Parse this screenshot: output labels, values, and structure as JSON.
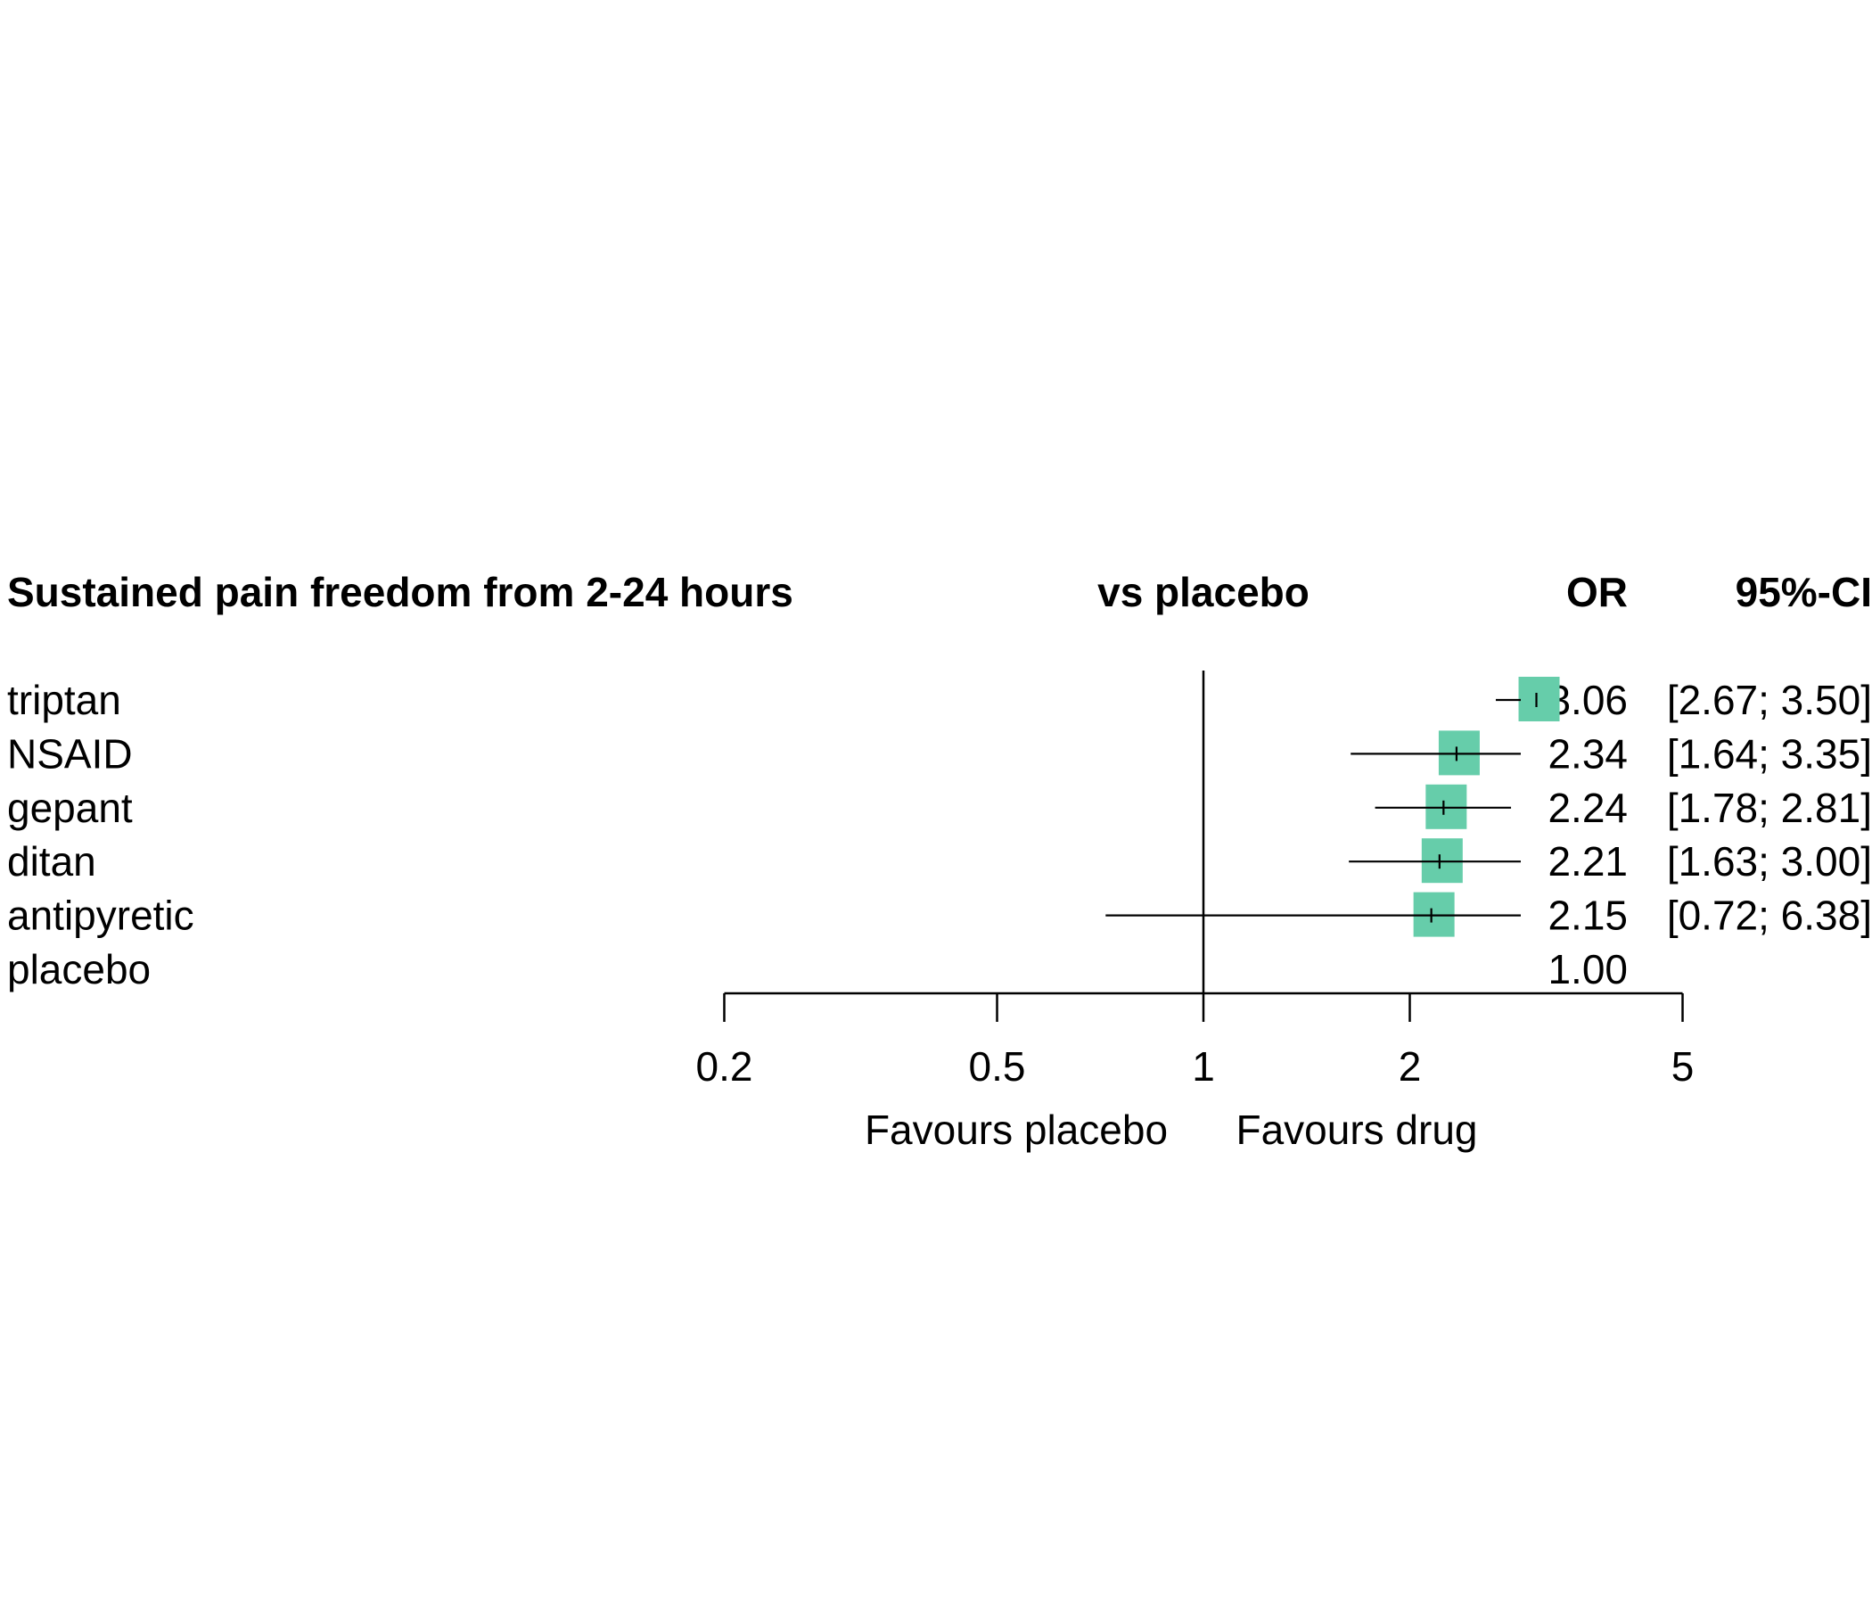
{
  "chart_data": {
    "type": "forest",
    "title": "Sustained pain freedom from 2-24 hours",
    "comparison_header": "vs placebo",
    "estimate_header": "OR",
    "ci_header": "95%-CI",
    "rows": [
      {
        "label": "triptan",
        "or": 3.06,
        "ci_low": 2.67,
        "ci_high": 3.5,
        "or_text": "3.06",
        "ci_text": "[2.67; 3.50]"
      },
      {
        "label": "NSAID",
        "or": 2.34,
        "ci_low": 1.64,
        "ci_high": 3.35,
        "or_text": "2.34",
        "ci_text": "[1.64; 3.35]"
      },
      {
        "label": "gepant",
        "or": 2.24,
        "ci_low": 1.78,
        "ci_high": 2.81,
        "or_text": "2.24",
        "ci_text": "[1.78; 2.81]"
      },
      {
        "label": "ditan",
        "or": 2.21,
        "ci_low": 1.63,
        "ci_high": 3.0,
        "or_text": "2.21",
        "ci_text": "[1.63; 3.00]"
      },
      {
        "label": "antipyretic",
        "or": 2.15,
        "ci_low": 0.72,
        "ci_high": 6.38,
        "or_text": "2.15",
        "ci_text": "[0.72; 6.38]"
      },
      {
        "label": "placebo",
        "or": 1.0,
        "ci_low": null,
        "ci_high": null,
        "or_text": "1.00",
        "ci_text": ""
      }
    ],
    "x_scale": "log",
    "x_ticks": [
      0.2,
      0.5,
      1,
      2,
      5
    ],
    "x_tick_labels": [
      "0.2",
      "0.5",
      "1",
      "2",
      "5"
    ],
    "xlim": [
      0.2,
      5
    ],
    "reference_line": 1,
    "xlabel_left": "Favours placebo",
    "xlabel_right": "Favours drug",
    "marker_color": "#66CDAA",
    "line_color": "#000000"
  }
}
